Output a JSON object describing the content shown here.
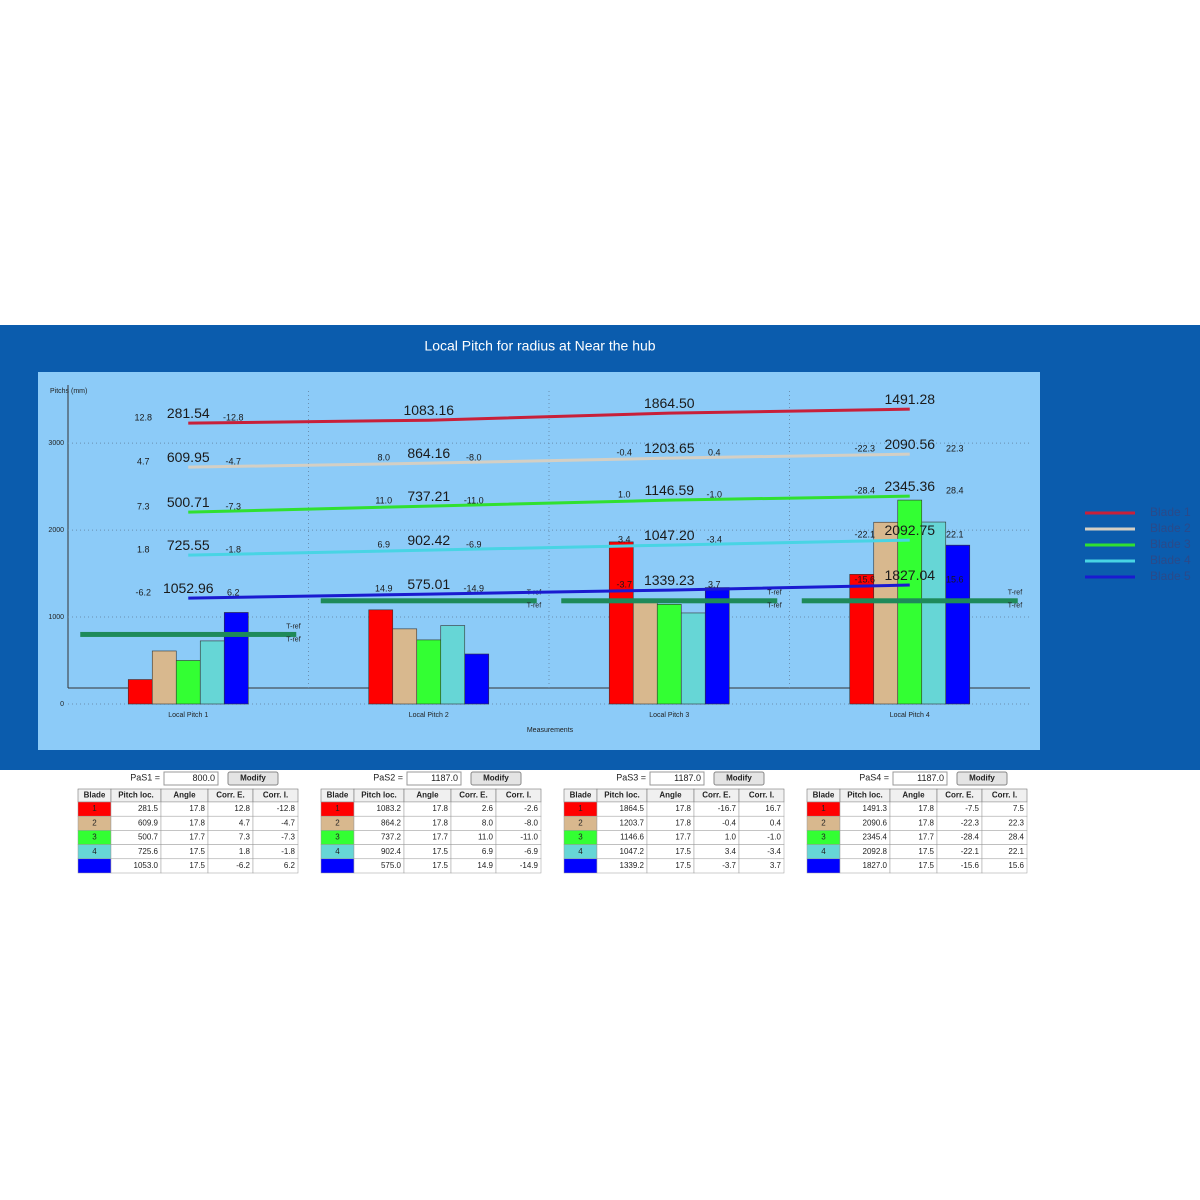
{
  "chart_data": {
    "type": "bar",
    "title": "Local Pitch for radius at Near the hub",
    "y_label": "Pitchs (mm)",
    "x_label": "Measurements",
    "categories": [
      "Local Pitch 1",
      "Local Pitch 2",
      "Local Pitch 3",
      "Local Pitch 4"
    ],
    "ylim": [
      0,
      3600
    ],
    "yticks": [
      0,
      1000,
      2000,
      3000
    ],
    "grid": true,
    "legend": "right",
    "bars": [
      {
        "color": "#ff0000",
        "values": [
          281.5,
          1083.2,
          1864.5,
          1491.3
        ]
      },
      {
        "color": "#d8b88e",
        "values": [
          609.9,
          864.2,
          1203.7,
          2090.6
        ]
      },
      {
        "color": "#33ff33",
        "values": [
          500.7,
          737.2,
          1146.6,
          2345.4
        ]
      },
      {
        "color": "#66d6d6",
        "values": [
          725.6,
          902.4,
          1047.2,
          2092.8
        ]
      },
      {
        "color": "#0000ff",
        "values": [
          1053.0,
          575.0,
          1339.2,
          1827.0
        ]
      }
    ],
    "series": [
      {
        "name": "Blade 1",
        "color": "#c8203a",
        "values": [
          3230,
          3264,
          3345,
          3391
        ]
      },
      {
        "name": "Blade 2",
        "color": "#d4cfc4",
        "values": [
          2724,
          2770,
          2828,
          2874
        ]
      },
      {
        "name": "Blade 3",
        "color": "#30e030",
        "values": [
          2207,
          2276,
          2345,
          2391
        ]
      },
      {
        "name": "Blade 4",
        "color": "#48d4e4",
        "values": [
          1713,
          1770,
          1828,
          1885
        ]
      },
      {
        "name": "Blade 5",
        "color": "#1a1ad0",
        "values": [
          1218,
          1264,
          1310,
          1368
        ]
      }
    ],
    "reference": {
      "name": "T-ref",
      "color": "#1e8a5a",
      "values": [
        800,
        1187,
        1187,
        1187
      ]
    },
    "annotations": [
      [
        [
          "12.8",
          "281.54",
          "-12.8"
        ],
        [
          null,
          "1083.16",
          null
        ],
        [
          null,
          "1864.50",
          null
        ],
        [
          null,
          "1491.28",
          null
        ]
      ],
      [
        [
          "4.7",
          "609.95",
          "-4.7"
        ],
        [
          "8.0",
          "864.16",
          "-8.0"
        ],
        [
          "-0.4",
          "1203.65",
          "0.4"
        ],
        [
          "-22.3",
          "2090.56",
          "22.3"
        ]
      ],
      [
        [
          "7.3",
          "500.71",
          "-7.3"
        ],
        [
          "11.0",
          "737.21",
          "-11.0"
        ],
        [
          "1.0",
          "1146.59",
          "-1.0"
        ],
        [
          "-28.4",
          "2345.36",
          "28.4"
        ]
      ],
      [
        [
          "1.8",
          "725.55",
          "-1.8"
        ],
        [
          "6.9",
          "902.42",
          "-6.9"
        ],
        [
          "3.4",
          "1047.20",
          "-3.4"
        ],
        [
          "-22.1",
          "2092.75",
          "22.1"
        ]
      ],
      [
        [
          "-6.2",
          "1052.96",
          "6.2"
        ],
        [
          "14.9",
          "575.01",
          "-14.9"
        ],
        [
          "-3.7",
          "1339.23",
          "3.7"
        ],
        [
          "-15.6",
          "1827.04",
          "15.6"
        ]
      ]
    ]
  },
  "tables": [
    {
      "label": "PaS1 =",
      "input": "800.0",
      "button": "Modify",
      "header": [
        "Blade",
        "Pitch loc.",
        "Angle",
        "Corr. E.",
        "Corr. I."
      ],
      "rows": [
        [
          "1",
          "281.5",
          "17.8",
          "12.8",
          "-12.8"
        ],
        [
          "2",
          "609.9",
          "17.8",
          "4.7",
          "-4.7"
        ],
        [
          "3",
          "500.7",
          "17.7",
          "7.3",
          "-7.3"
        ],
        [
          "4",
          "725.6",
          "17.5",
          "1.8",
          "-1.8"
        ],
        [
          null,
          "1053.0",
          "17.5",
          "-6.2",
          "6.2"
        ]
      ]
    },
    {
      "label": "PaS2 =",
      "input": "1187.0",
      "button": "Modify",
      "header": [
        "Blade",
        "Pitch loc.",
        "Angle",
        "Corr. E.",
        "Corr. I."
      ],
      "rows": [
        [
          "1",
          "1083.2",
          "17.8",
          "2.6",
          "-2.6"
        ],
        [
          "2",
          "864.2",
          "17.8",
          "8.0",
          "-8.0"
        ],
        [
          "3",
          "737.2",
          "17.7",
          "11.0",
          "-11.0"
        ],
        [
          "4",
          "902.4",
          "17.5",
          "6.9",
          "-6.9"
        ],
        [
          null,
          "575.0",
          "17.5",
          "14.9",
          "-14.9"
        ]
      ]
    },
    {
      "label": "PaS3 =",
      "input": "1187.0",
      "button": "Modify",
      "header": [
        "Blade",
        "Pitch loc.",
        "Angle",
        "Corr. E.",
        "Corr. I."
      ],
      "rows": [
        [
          "1",
          "1864.5",
          "17.8",
          "-16.7",
          "16.7"
        ],
        [
          "2",
          "1203.7",
          "17.8",
          "-0.4",
          "0.4"
        ],
        [
          "3",
          "1146.6",
          "17.7",
          "1.0",
          "-1.0"
        ],
        [
          "4",
          "1047.2",
          "17.5",
          "3.4",
          "-3.4"
        ],
        [
          null,
          "1339.2",
          "17.5",
          "-3.7",
          "3.7"
        ]
      ]
    },
    {
      "label": "PaS4 =",
      "input": "1187.0",
      "button": "Modify",
      "header": [
        "Blade",
        "Pitch loc.",
        "Angle",
        "Corr. E.",
        "Corr. I."
      ],
      "rows": [
        [
          "1",
          "1491.3",
          "17.8",
          "-7.5",
          "7.5"
        ],
        [
          "2",
          "2090.6",
          "17.8",
          "-22.3",
          "22.3"
        ],
        [
          "3",
          "2345.4",
          "17.7",
          "-28.4",
          "28.4"
        ],
        [
          "4",
          "2092.8",
          "17.5",
          "-22.1",
          "22.1"
        ],
        [
          null,
          "1827.0",
          "17.5",
          "-15.6",
          "15.6"
        ]
      ]
    }
  ]
}
